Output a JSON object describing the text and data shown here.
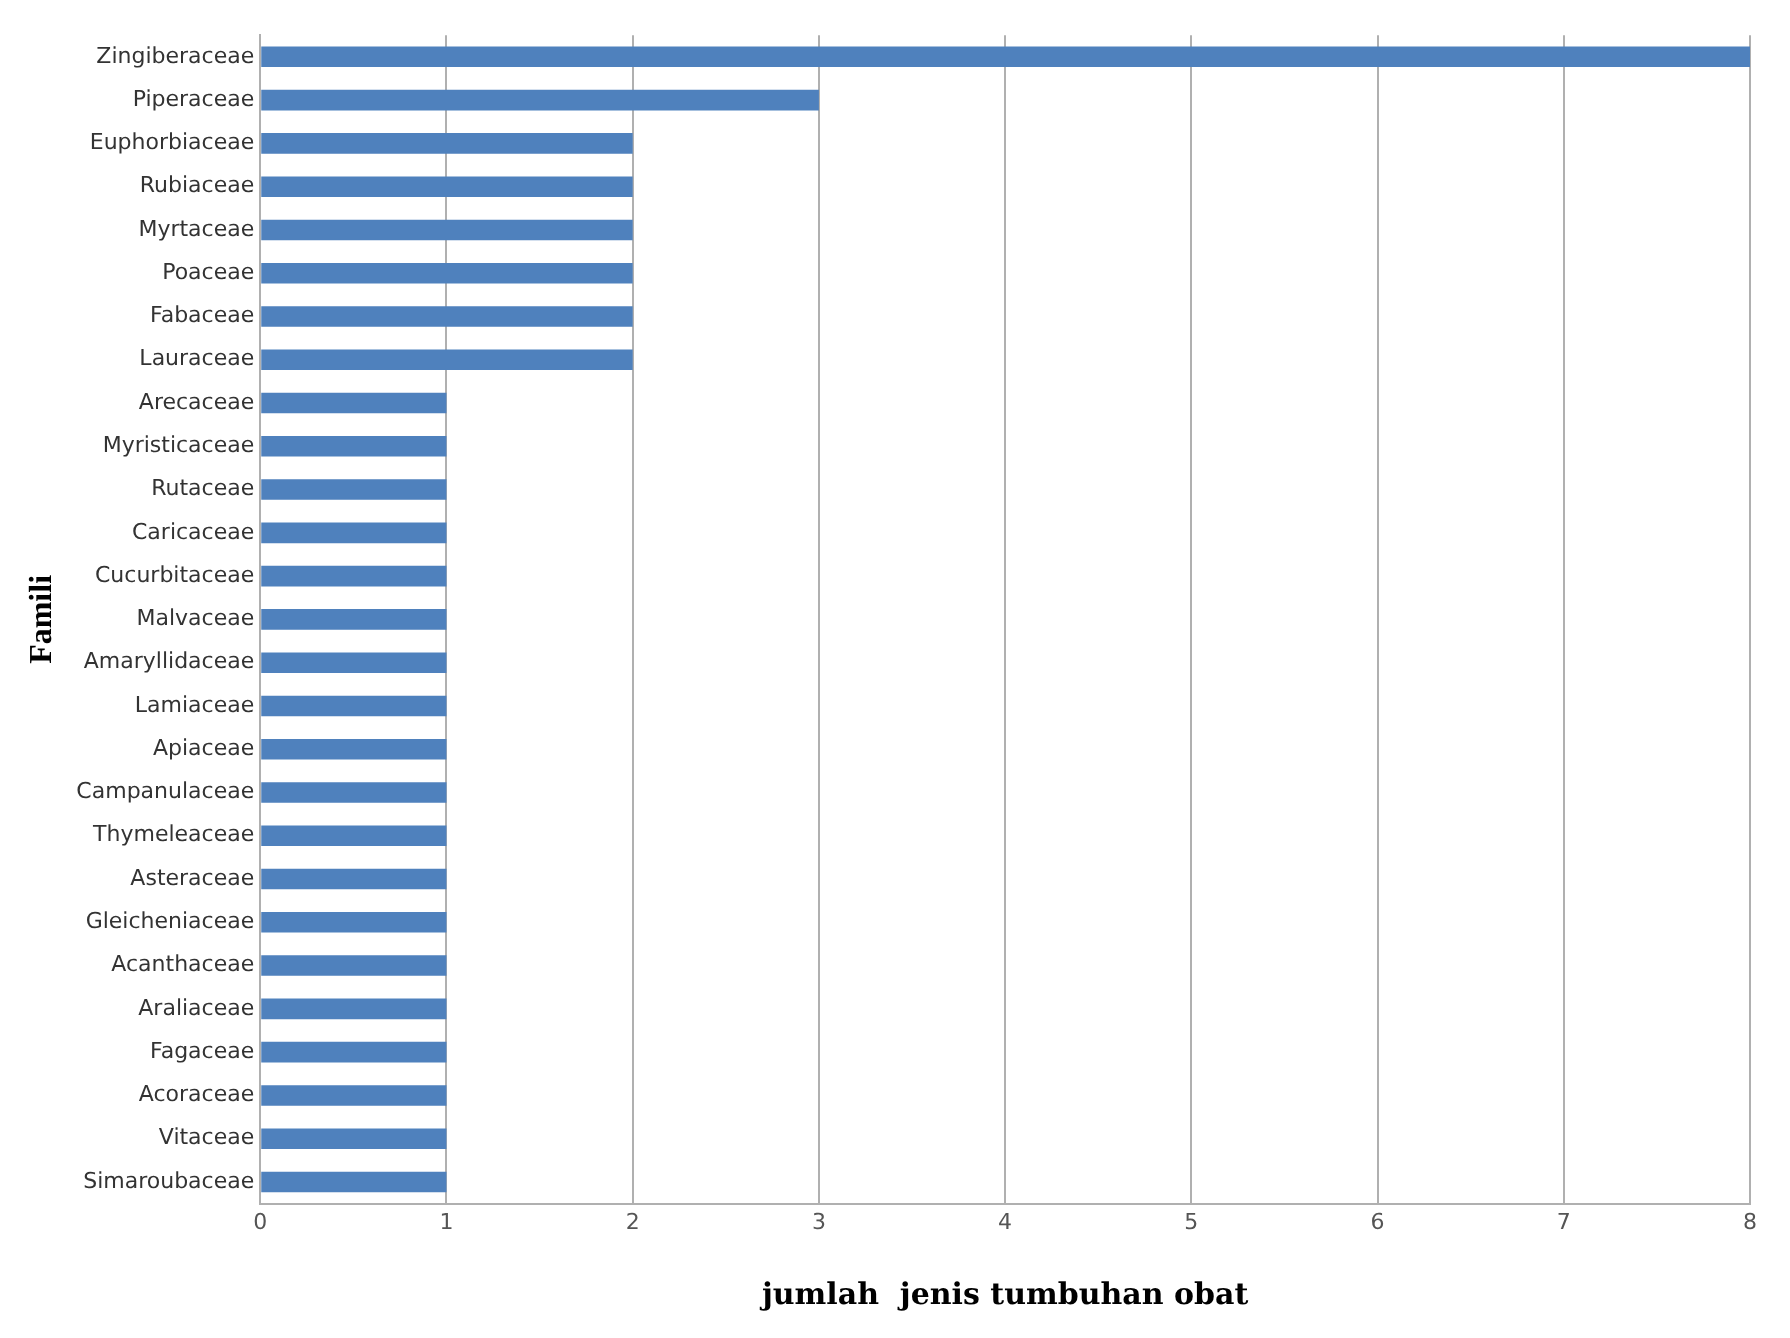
{
  "chart_data": {
    "type": "bar",
    "orientation": "horizontal",
    "xlabel": "jumlah  jenis tumbuhan obat",
    "ylabel": "Famili",
    "categories": [
      "Zingiberaceae",
      "Piperaceae",
      "Euphorbiaceae",
      "Rubiaceae",
      "Myrtaceae",
      "Poaceae",
      "Fabaceae",
      "Lauraceae",
      "Arecaceae",
      "Myristicaceae",
      "Rutaceae",
      "Caricaceae",
      "Cucurbitaceae",
      "Malvaceae",
      "Amaryllidaceae",
      "Lamiaceae",
      "Apiaceae",
      "Campanulaceae",
      "Thymeleaceae",
      "Asteraceae",
      "Gleicheniaceae",
      "Acanthaceae",
      "Araliaceae",
      "Fagaceae",
      "Acoraceae",
      "Vitaceae",
      "Simaroubaceae"
    ],
    "values": [
      8,
      3,
      2,
      2,
      2,
      2,
      2,
      2,
      1,
      1,
      1,
      1,
      1,
      1,
      1,
      1,
      1,
      1,
      1,
      1,
      1,
      1,
      1,
      1,
      1,
      1,
      1
    ],
    "color": "#4f81bd",
    "xlim": [
      0,
      8
    ],
    "xticks": [
      0,
      1,
      2,
      3,
      4,
      5,
      6,
      7,
      8
    ],
    "grid": "x",
    "legend": false
  }
}
